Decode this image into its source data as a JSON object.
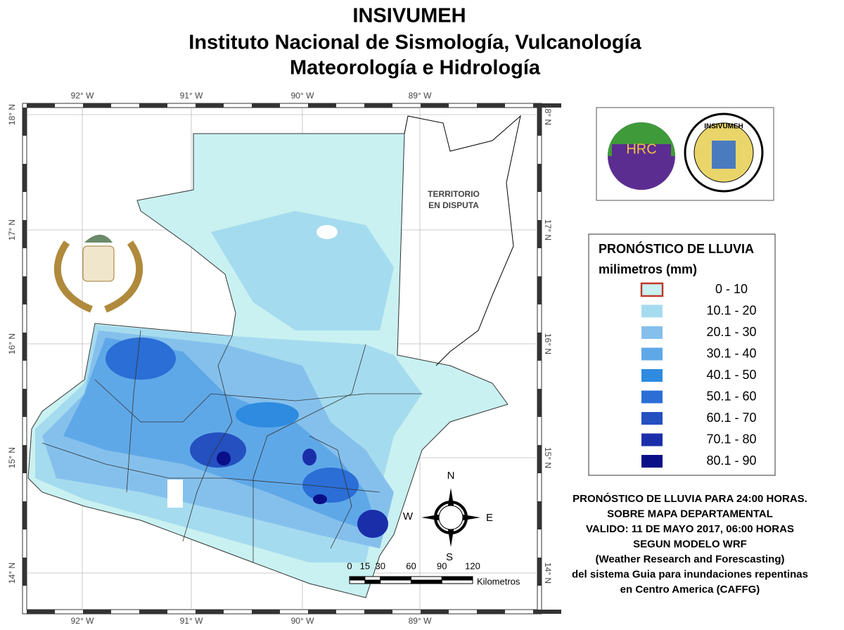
{
  "header": {
    "title": "INSIVUMEH",
    "subtitle_1": "Instituto Nacional de Sismología, Vulcanología",
    "subtitle_2": "Mateorología e Hidrología"
  },
  "map": {
    "longitudes": [
      "92° W",
      "91° W",
      "90° W",
      "89° W"
    ],
    "latitudes": [
      "18° N",
      "17° N",
      "16° N",
      "15° N",
      "14° N"
    ],
    "annotation_1": "TERRITORIO",
    "annotation_2": "EN DISPUTA",
    "compass": {
      "north": "N",
      "south": "S",
      "east": "E",
      "west": "W"
    },
    "scale": {
      "ticks": [
        0,
        15,
        30,
        60,
        90,
        120
      ],
      "unit": "Kilometros"
    }
  },
  "logos": {
    "hrc": "HRC",
    "insivumeh": "INSIVUMEH"
  },
  "legend": {
    "title": "PRONÓSTICO DE LLUVIA",
    "unit": "milimetros (mm)",
    "items": [
      {
        "label": "0 - 10",
        "color": "#c9f1f1"
      },
      {
        "label": "10.1 - 20",
        "color": "#a5dbef"
      },
      {
        "label": "20.1 - 30",
        "color": "#85c0ec"
      },
      {
        "label": "30.1 - 40",
        "color": "#5fa8e8"
      },
      {
        "label": "40.1 - 50",
        "color": "#2e8be0"
      },
      {
        "label": "50.1 - 60",
        "color": "#2a6ed6"
      },
      {
        "label": "60.1 - 70",
        "color": "#2450c0"
      },
      {
        "label": "70.1 - 80",
        "color": "#1a2eaa"
      },
      {
        "label": "80.1 - 90",
        "color": "#0a0f88"
      }
    ]
  },
  "description": [
    "PRONÓSTICO DE LLUVIA PARA 24:00 HORAS.",
    "SOBRE MAPA DEPARTAMENTAL",
    "VALIDO: 11 DE MAYO 2017, 06:00 HORAS",
    "SEGUN MODELO WRF",
    "(Weather Research and Forescasting)",
    "del sistema Guia  para inundaciones repentinas",
    "en Centro America (CAFFG)"
  ]
}
